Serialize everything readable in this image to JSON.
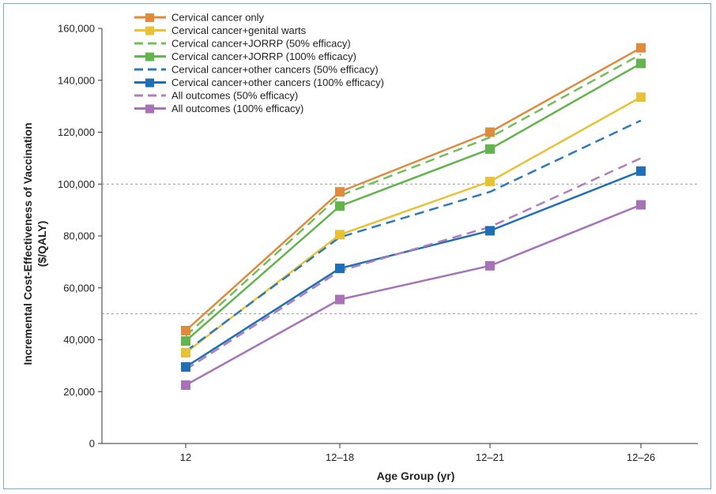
{
  "chart_data": {
    "type": "line",
    "title": "",
    "xlabel": "Age Group (yr)",
    "ylabel_line1": "Incremental Cost-Effectiveness of Vaccination",
    "ylabel_line2": "($/QALY)",
    "categories": [
      "12",
      "12–18",
      "12–21",
      "12–26"
    ],
    "ylim": [
      0,
      160000
    ],
    "yticks": [
      0,
      20000,
      40000,
      60000,
      80000,
      100000,
      120000,
      140000,
      160000
    ],
    "ytick_labels": [
      "0",
      "20,000",
      "40,000",
      "60,000",
      "80,000",
      "100,000",
      "120,000",
      "140,000",
      "160,000"
    ],
    "reference_lines": [
      50000,
      100000
    ],
    "legend_position": "top-left",
    "grid": false,
    "series": [
      {
        "name": "Cervical cancer only",
        "values": [
          43500,
          97000,
          120000,
          152500
        ],
        "color": "#e08a3c",
        "dash": false,
        "marker": true
      },
      {
        "name": "Cervical cancer+genital warts",
        "values": [
          35000,
          80500,
          101000,
          133500
        ],
        "color": "#e8c234",
        "dash": false,
        "marker": true
      },
      {
        "name": "Cervical cancer+JORRP (50% efficacy)",
        "values": [
          41500,
          95500,
          118000,
          150000
        ],
        "color": "#72bf5a",
        "dash": true,
        "marker": false
      },
      {
        "name": "Cervical cancer+JORRP (100% efficacy)",
        "values": [
          39500,
          91500,
          113500,
          146500
        ],
        "color": "#62b44c",
        "dash": false,
        "marker": true
      },
      {
        "name": "Cervical cancer+other cancers (50% efficacy)",
        "values": [
          35500,
          79500,
          97000,
          124500
        ],
        "color": "#2f7ab8",
        "dash": true,
        "marker": false
      },
      {
        "name": "Cervical cancer+other cancers (100% efficacy)",
        "values": [
          29500,
          67500,
          82000,
          105000
        ],
        "color": "#1f6fb5",
        "dash": false,
        "marker": true
      },
      {
        "name": "All outcomes (50% efficacy)",
        "values": [
          28500,
          66500,
          83500,
          110000
        ],
        "color": "#b07fc0",
        "dash": true,
        "marker": false
      },
      {
        "name": "All outcomes (100% efficacy)",
        "values": [
          22500,
          55500,
          68500,
          92000
        ],
        "color": "#a772b8",
        "dash": false,
        "marker": true
      }
    ]
  }
}
